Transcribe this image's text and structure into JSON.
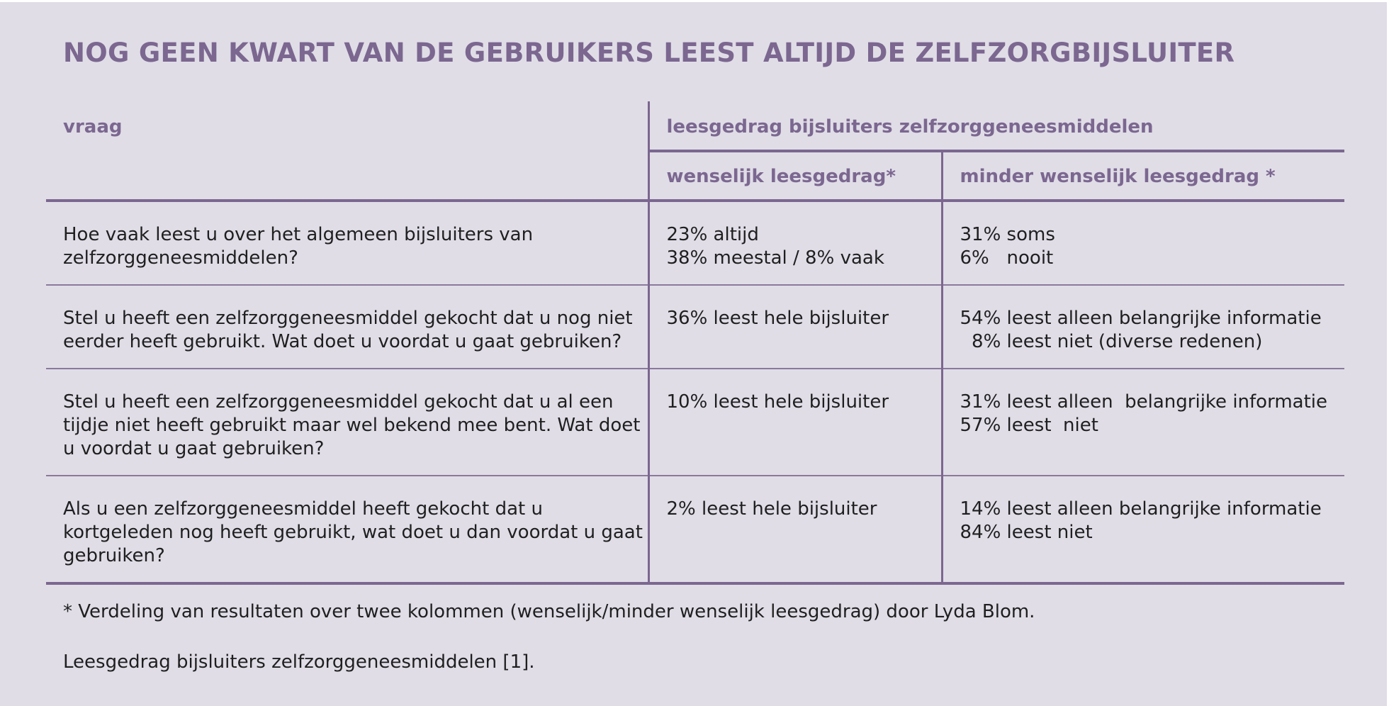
{
  "title": "NOG GEEN KWART VAN DE GEBRUIKERS LEEST ALTIJD DE ZELFZORGBIJSLUITER",
  "table": {
    "header": {
      "vraag": "vraag",
      "group": "leesgedrag bijsluiters zelfzorggeneesmiddelen",
      "wenselijk": "wenselijk leesgedrag*",
      "minder": "minder wenselijk leesgedrag *"
    },
    "rows": [
      {
        "vraag": "Hoe vaak leest u over het algemeen bijsluiters van zelfzorggeneesmiddelen?",
        "wenselijk": [
          "23% altijd",
          "38% meestal / 8% vaak"
        ],
        "minder": [
          "31% soms",
          "6%   nooit"
        ]
      },
      {
        "vraag": "Stel u heeft een zelfzorggeneesmiddel gekocht dat u nog niet eerder heeft gebruikt. Wat doet u voordat u gaat gebruiken?",
        "wenselijk": [
          "36% leest hele bijsluiter"
        ],
        "minder": [
          "54% leest alleen belangrijke informatie",
          "  8% leest niet (diverse redenen)"
        ]
      },
      {
        "vraag": "Stel u heeft een zelfzorggeneesmiddel gekocht dat u al een tijdje niet heeft gebruikt maar wel bekend mee bent. Wat doet u voordat u gaat gebruiken?",
        "wenselijk": [
          "10% leest hele bijsluiter"
        ],
        "minder": [
          "31% leest alleen  belangrijke informatie",
          "57% leest  niet"
        ]
      },
      {
        "vraag": "Als u een zelfzorggeneesmiddel heeft gekocht dat u kortgeleden nog heeft gebruikt, wat doet u dan voordat u gaat gebruiken?",
        "wenselijk": [
          "2% leest hele bijsluiter"
        ],
        "minder": [
          "14% leest alleen belangrijke informatie",
          "84% leest niet"
        ]
      }
    ]
  },
  "footnote": "* Verdeling van resultaten over twee kolommen (wenselijk/minder wenselijk leesgedrag) door Lyda Blom.",
  "source": "Leesgedrag bijsluiters zelfzorggeneesmiddelen [1]."
}
